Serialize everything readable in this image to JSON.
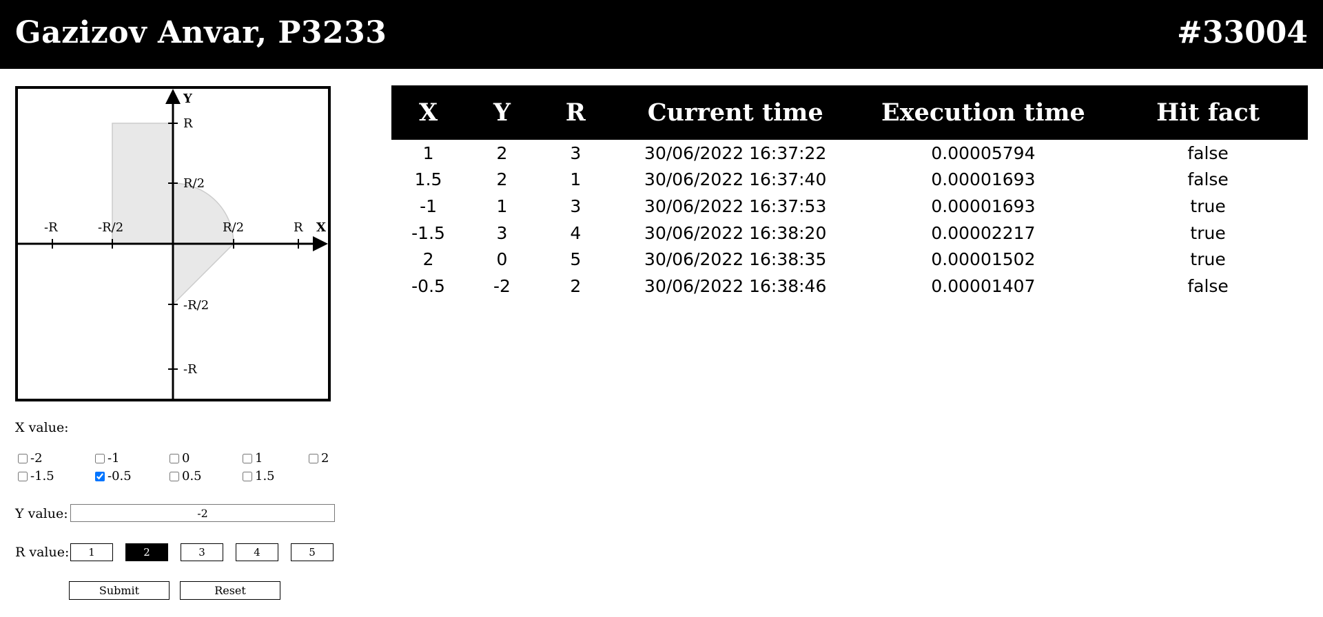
{
  "header": {
    "name": "Gazizov Anvar, P3233",
    "variant": "#33004"
  },
  "graph": {
    "axis_x": "X",
    "axis_y": "Y",
    "labels": {
      "r": "R",
      "half_r": "R/2",
      "neg_half_r": "-R/2",
      "neg_r": "-R"
    }
  },
  "form": {
    "x_label": "X value:",
    "x_options": [
      {
        "label": "-2",
        "checked": false
      },
      {
        "label": "-1",
        "checked": false
      },
      {
        "label": "0",
        "checked": false
      },
      {
        "label": "1",
        "checked": false
      },
      {
        "label": "2",
        "checked": false
      },
      {
        "label": "-1.5",
        "checked": false
      },
      {
        "label": "-0.5",
        "checked": true
      },
      {
        "label": "0.5",
        "checked": false
      },
      {
        "label": "1.5",
        "checked": false
      }
    ],
    "y_label": "Y value:",
    "y_value": "-2",
    "r_label": "R value:",
    "r_options": [
      "1",
      "2",
      "3",
      "4",
      "5"
    ],
    "r_selected": "2",
    "submit_label": "Submit",
    "reset_label": "Reset"
  },
  "table": {
    "headers": [
      "X",
      "Y",
      "R",
      "Current time",
      "Execution time",
      "Hit fact"
    ],
    "rows": [
      [
        "1",
        "2",
        "3",
        "30/06/2022 16:37:22",
        "0.00005794",
        "false"
      ],
      [
        "1.5",
        "2",
        "1",
        "30/06/2022 16:37:40",
        "0.00001693",
        "false"
      ],
      [
        "-1",
        "1",
        "3",
        "30/06/2022 16:37:53",
        "0.00001693",
        "true"
      ],
      [
        "-1.5",
        "3",
        "4",
        "30/06/2022 16:38:20",
        "0.00002217",
        "true"
      ],
      [
        "2",
        "0",
        "5",
        "30/06/2022 16:38:35",
        "0.00001502",
        "true"
      ],
      [
        "-0.5",
        "-2",
        "2",
        "30/06/2022 16:38:46",
        "0.00001407",
        "false"
      ]
    ]
  }
}
